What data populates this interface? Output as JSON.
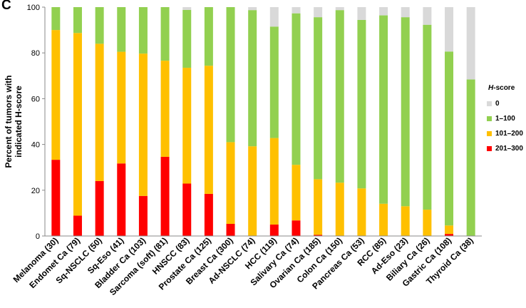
{
  "panel_label": "C",
  "chart_data": {
    "type": "bar",
    "stacked": true,
    "title": "",
    "xlabel": "",
    "ylabel_lines": [
      "Percent of tumors with",
      "indicated H-score"
    ],
    "ylim": [
      0,
      100
    ],
    "yticks": [
      0,
      20,
      40,
      60,
      80,
      100
    ],
    "grid": false,
    "legend_position": "right",
    "legend_title_italic": "H",
    "legend_title_suffix": "-score",
    "categories": [
      "Melanoma (30)",
      "Endomet Ca (79)",
      "Sq-NSCLC (50)",
      "Sq-Eso (41)",
      "Bladder Ca (103)",
      "Sarcoma (soft) (81)",
      "HNSCC (83)",
      "Prostate Ca (125)",
      "Breast Ca (300)",
      "Ad-NSCLC (74)",
      "HCC (119)",
      "Salivary Ca (74)",
      "Ovarian Ca (185)",
      "Colon Ca (150)",
      "Pancreas Ca (53)",
      "RCC (85)",
      "Ad-Eso (23)",
      "Biliary Ca (26)",
      "Gastric Ca (108)",
      "Thyroid Ca (38)"
    ],
    "series": [
      {
        "name": "201–300",
        "color": "#ff0000",
        "values": [
          33.3,
          8.9,
          24.0,
          31.7,
          17.5,
          34.6,
          22.9,
          18.4,
          5.3,
          0,
          5.0,
          6.8,
          0.5,
          0,
          0,
          0,
          0,
          0,
          0.9,
          0
        ]
      },
      {
        "name": "101–200",
        "color": "#ffc000",
        "values": [
          56.7,
          79.8,
          60.0,
          48.8,
          62.2,
          42.0,
          50.6,
          56.0,
          35.7,
          39.2,
          37.8,
          24.3,
          24.3,
          23.3,
          20.8,
          14.1,
          13.0,
          11.5,
          3.7,
          0
        ]
      },
      {
        "name": "1–100",
        "color": "#92d050",
        "values": [
          10.0,
          11.3,
          16.0,
          19.5,
          20.3,
          23.4,
          25.3,
          25.6,
          59.0,
          59.5,
          48.7,
          66.2,
          70.8,
          75.4,
          73.6,
          82.3,
          82.6,
          80.8,
          76.0,
          68.4
        ]
      },
      {
        "name": "0",
        "color": "#d9d9d9",
        "values": [
          0,
          0,
          0,
          0,
          0,
          0,
          1.2,
          0,
          0,
          1.3,
          8.5,
          2.7,
          4.4,
          1.3,
          5.6,
          3.6,
          4.4,
          7.7,
          19.4,
          31.6
        ]
      }
    ]
  },
  "legend_order": [
    "0",
    "1–100",
    "101–200",
    "201–300"
  ]
}
